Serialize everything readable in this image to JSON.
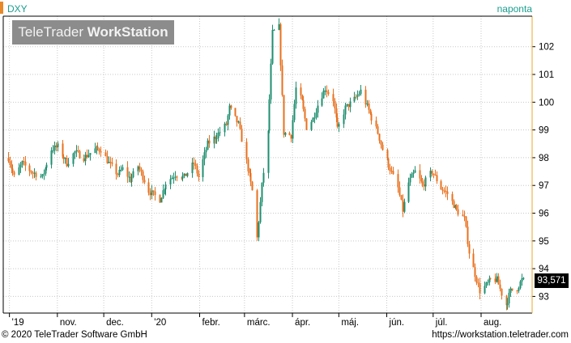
{
  "header": {
    "symbol": "DXY",
    "frequency": "naponta"
  },
  "watermark": {
    "part1": "TeleTrader",
    "part2": "WorkStation"
  },
  "last_value_label": "93,571",
  "footer": {
    "copyright": "© 2020 TeleTrader Software GmbH",
    "url": "https://workstation.teletrader.com"
  },
  "colors": {
    "up": "#1f8f6f",
    "down": "#e8701e",
    "grid": "#c8c8c8",
    "axis": "#000000",
    "brand": "#1a9e8f",
    "accent": "#e8a72a"
  },
  "chart_data": {
    "type": "candlestick",
    "title": "",
    "ylim": [
      92.4,
      103.1
    ],
    "y_ticks": [
      93,
      94,
      95,
      96,
      97,
      98,
      99,
      100,
      101,
      102
    ],
    "y_tick_labels": [
      "93",
      "94",
      "95",
      "96",
      "97",
      "98",
      "99",
      "100",
      "101",
      "102"
    ],
    "x_labels": [
      {
        "label": "'19",
        "date": "2019-10-01"
      },
      {
        "label": "nov.",
        "date": "2019-11-01"
      },
      {
        "label": "dec.",
        "date": "2019-12-01"
      },
      {
        "label": "'20",
        "date": "2020-01-01"
      },
      {
        "label": "febr.",
        "date": "2020-02-01"
      },
      {
        "label": "márc.",
        "date": "2020-03-01"
      },
      {
        "label": "ápr.",
        "date": "2020-04-01"
      },
      {
        "label": "máj.",
        "date": "2020-05-01"
      },
      {
        "label": "jún.",
        "date": "2020-06-01"
      },
      {
        "label": "júl.",
        "date": "2020-07-01"
      },
      {
        "label": "aug.",
        "date": "2020-08-01"
      }
    ],
    "grid": true,
    "series": [
      {
        "close_path": [
          [
            "2019-09-30",
            98.0
          ],
          [
            "2019-10-04",
            97.3
          ],
          [
            "2019-10-09",
            97.8
          ],
          [
            "2019-10-15",
            97.5
          ],
          [
            "2019-10-22",
            97.3
          ],
          [
            "2019-10-28",
            98.3
          ],
          [
            "2019-11-01",
            98.4
          ],
          [
            "2019-11-07",
            97.8
          ],
          [
            "2019-11-12",
            98.2
          ],
          [
            "2019-11-18",
            98.0
          ],
          [
            "2019-11-25",
            98.3
          ],
          [
            "2019-11-29",
            98.3
          ],
          [
            "2019-12-04",
            97.8
          ],
          [
            "2019-12-10",
            97.4
          ],
          [
            "2019-12-13",
            97.6
          ],
          [
            "2019-12-18",
            97.2
          ],
          [
            "2019-12-23",
            97.7
          ],
          [
            "2019-12-30",
            96.8
          ],
          [
            "2020-01-06",
            96.5
          ],
          [
            "2020-01-10",
            97.1
          ],
          [
            "2020-01-16",
            97.4
          ],
          [
            "2020-01-22",
            97.3
          ],
          [
            "2020-01-28",
            97.8
          ],
          [
            "2020-01-31",
            97.3
          ],
          [
            "2020-02-06",
            98.5
          ],
          [
            "2020-02-12",
            98.8
          ],
          [
            "2020-02-18",
            99.2
          ],
          [
            "2020-02-20",
            99.8
          ],
          [
            "2020-02-26",
            99.2
          ],
          [
            "2020-03-03",
            97.6
          ],
          [
            "2020-03-06",
            96.8
          ],
          [
            "2020-03-09",
            95.1
          ],
          [
            "2020-03-12",
            97.0
          ],
          [
            "2020-03-16",
            98.9
          ],
          [
            "2020-03-19",
            102.5
          ],
          [
            "2020-03-23",
            102.7
          ],
          [
            "2020-03-26",
            98.9
          ],
          [
            "2020-03-31",
            98.8
          ],
          [
            "2020-04-03",
            100.5
          ],
          [
            "2020-04-07",
            100.0
          ],
          [
            "2020-04-10",
            99.1
          ],
          [
            "2020-04-14",
            99.4
          ],
          [
            "2020-04-17",
            99.9
          ],
          [
            "2020-04-22",
            100.5
          ],
          [
            "2020-04-27",
            100.1
          ],
          [
            "2020-04-30",
            99.0
          ],
          [
            "2020-05-05",
            99.8
          ],
          [
            "2020-05-11",
            100.1
          ],
          [
            "2020-05-15",
            100.4
          ],
          [
            "2020-05-20",
            99.7
          ],
          [
            "2020-05-26",
            98.9
          ],
          [
            "2020-05-29",
            98.3
          ],
          [
            "2020-06-03",
            97.6
          ],
          [
            "2020-06-08",
            96.9
          ],
          [
            "2020-06-11",
            96.1
          ],
          [
            "2020-06-15",
            97.1
          ],
          [
            "2020-06-19",
            97.5
          ],
          [
            "2020-06-24",
            97.0
          ],
          [
            "2020-06-30",
            97.5
          ],
          [
            "2020-07-06",
            96.9
          ],
          [
            "2020-07-10",
            96.7
          ],
          [
            "2020-07-16",
            96.1
          ],
          [
            "2020-07-21",
            95.8
          ],
          [
            "2020-07-24",
            94.6
          ],
          [
            "2020-07-28",
            93.8
          ],
          [
            "2020-07-31",
            93.2
          ],
          [
            "2020-08-04",
            93.4
          ],
          [
            "2020-08-07",
            93.6
          ],
          [
            "2020-08-11",
            93.6
          ],
          [
            "2020-08-14",
            93.1
          ],
          [
            "2020-08-17",
            92.7
          ],
          [
            "2020-08-20",
            93.2
          ],
          [
            "2020-08-24",
            93.3
          ],
          [
            "2020-08-27",
            93.6
          ],
          [
            "2020-08-28",
            93.571
          ]
        ]
      }
    ],
    "last_value": 93.571
  }
}
